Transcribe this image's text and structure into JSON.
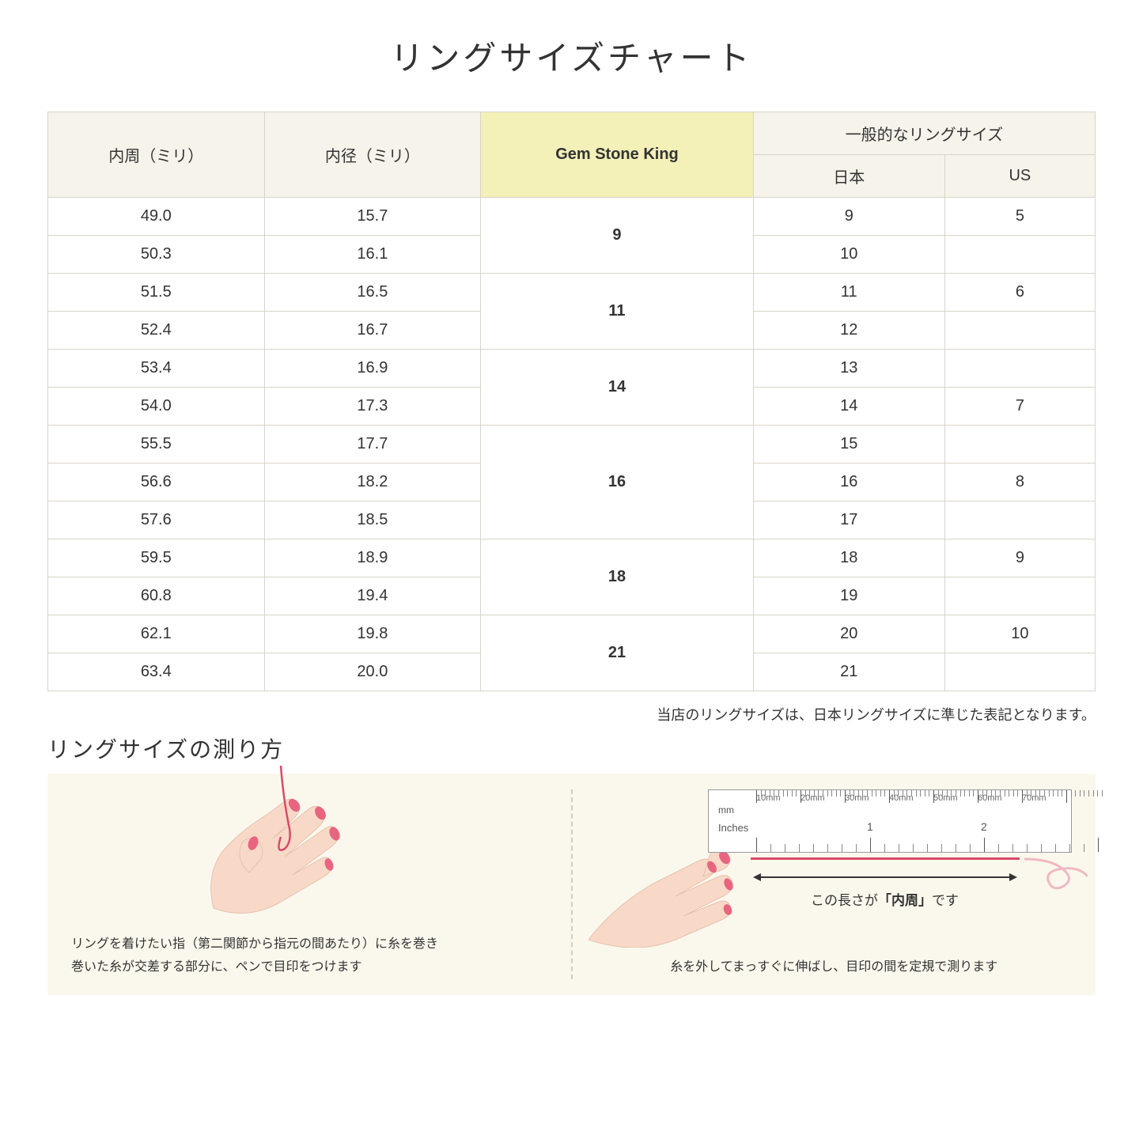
{
  "title": "リングサイズチャート",
  "table": {
    "headers": {
      "circumference": "内周（ミリ）",
      "diameter": "内径（ミリ）",
      "gsk": "Gem Stone King",
      "general": "一般的なリングサイズ",
      "japan": "日本",
      "us": "US"
    },
    "groups": [
      {
        "gsk": "9",
        "rows": [
          {
            "c": "49.0",
            "d": "15.7",
            "jp": "9",
            "us": "5"
          },
          {
            "c": "50.3",
            "d": "16.1",
            "jp": "10",
            "us": ""
          }
        ]
      },
      {
        "gsk": "11",
        "rows": [
          {
            "c": "51.5",
            "d": "16.5",
            "jp": "11",
            "us": "6"
          },
          {
            "c": "52.4",
            "d": "16.7",
            "jp": "12",
            "us": ""
          }
        ]
      },
      {
        "gsk": "14",
        "rows": [
          {
            "c": "53.4",
            "d": "16.9",
            "jp": "13",
            "us": ""
          },
          {
            "c": "54.0",
            "d": "17.3",
            "jp": "14",
            "us": "7"
          }
        ]
      },
      {
        "gsk": "16",
        "rows": [
          {
            "c": "55.5",
            "d": "17.7",
            "jp": "15",
            "us": ""
          },
          {
            "c": "56.6",
            "d": "18.2",
            "jp": "16",
            "us": "8"
          },
          {
            "c": "57.6",
            "d": "18.5",
            "jp": "17",
            "us": ""
          }
        ]
      },
      {
        "gsk": "18",
        "rows": [
          {
            "c": "59.5",
            "d": "18.9",
            "jp": "18",
            "us": "9"
          },
          {
            "c": "60.8",
            "d": "19.4",
            "jp": "19",
            "us": ""
          }
        ]
      },
      {
        "gsk": "21",
        "rows": [
          {
            "c": "62.1",
            "d": "19.8",
            "jp": "20",
            "us": "10"
          },
          {
            "c": "63.4",
            "d": "20.0",
            "jp": "21",
            "us": ""
          }
        ]
      }
    ]
  },
  "note": "当店のリングサイズは、日本リングサイズに準じた表記となります。",
  "subtitle": "リングサイズの測り方",
  "instructions": {
    "left_line1": "リングを着けたい指（第二関節から指元の間あたり）に糸を巻き",
    "left_line2": "巻いた糸が交差する部分に、ペンで目印をつけます",
    "right_caption": "糸を外してまっすぐに伸ばし、目印の間を定規で測ります",
    "arrow_prefix": "この長さが",
    "arrow_em": "「内周」",
    "arrow_suffix": "です"
  },
  "ruler": {
    "mm_label": "mm",
    "in_label": "Inches",
    "mm_marks": [
      "10mm",
      "20mm",
      "30mm",
      "40mm",
      "50mm",
      "60mm",
      "70mm"
    ],
    "in_marks": [
      "1",
      "2"
    ]
  },
  "colors": {
    "header_bg": "#f5f3ea",
    "highlight_bg": "#f3f0b8",
    "border": "#d8d4c8",
    "panel_bg": "#faf8ed",
    "thread": "#d94a6a",
    "skin": "#f8d9c8",
    "nail": "#e8657f"
  }
}
